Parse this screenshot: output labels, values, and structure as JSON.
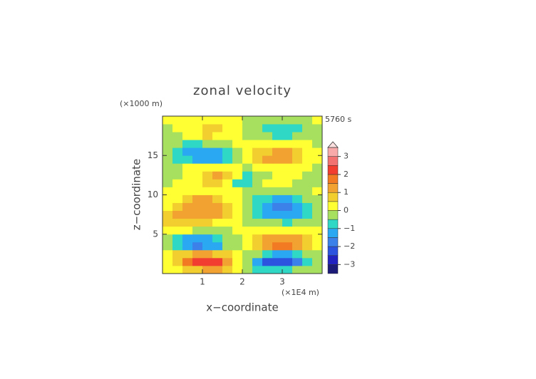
{
  "chart_data": {
    "type": "contour",
    "title": "zonal velocity",
    "subtitle": "5760 s",
    "x_label": "x−coordinate",
    "y_label": "z−coordinate",
    "x_unit": "(×1E4 m)",
    "y_unit": "(×1000 m)",
    "xlim": [
      0,
      4
    ],
    "ylim": [
      0,
      20
    ],
    "xticks": [
      1,
      2,
      3
    ],
    "yticks": [
      5,
      10,
      15
    ],
    "x": [
      0.125,
      0.375,
      0.625,
      0.875,
      1.125,
      1.375,
      1.625,
      1.875,
      2.125,
      2.375,
      2.625,
      2.875,
      3.125,
      3.375,
      3.625,
      3.875
    ],
    "y": [
      0.5,
      1.5,
      2.5,
      3.5,
      4.5,
      5.5,
      6.5,
      7.5,
      8.5,
      9.5,
      10.5,
      11.5,
      12.5,
      13.5,
      14.5,
      15.5,
      16.5,
      17.5,
      18.5,
      19.5
    ],
    "values": [
      [
        0.2,
        0.3,
        0.5,
        0.8,
        1.0,
        1.0,
        0.6,
        0.2,
        -0.2,
        -0.6,
        -1.0,
        -1.0,
        -0.8,
        -0.5,
        -0.3,
        -0.2
      ],
      [
        0.3,
        0.8,
        1.5,
        2.1,
        2.3,
        2.0,
        1.3,
        0.4,
        -0.5,
        -1.4,
        -2.1,
        -2.4,
        -2.2,
        -1.6,
        -0.8,
        -0.3
      ],
      [
        0.2,
        0.5,
        0.9,
        1.1,
        1.1,
        0.9,
        0.5,
        0.1,
        -0.1,
        -0.5,
        -0.9,
        -1.2,
        -1.1,
        -0.8,
        -0.4,
        -0.1
      ],
      [
        -0.3,
        -0.9,
        -1.4,
        -1.6,
        -1.5,
        -1.1,
        -0.5,
        -0.1,
        0.1,
        0.6,
        1.2,
        1.6,
        1.7,
        1.3,
        0.7,
        0.2
      ],
      [
        -0.2,
        -0.7,
        -1.1,
        -1.3,
        -1.2,
        -0.9,
        -0.4,
        -0.1,
        0.1,
        0.5,
        1.0,
        1.3,
        1.3,
        1.0,
        0.5,
        0.1
      ],
      [
        0.1,
        0.1,
        0.0,
        -0.2,
        -0.3,
        -0.3,
        -0.2,
        0.0,
        0.0,
        0.2,
        0.3,
        0.4,
        0.3,
        0.2,
        0.1,
        0.1
      ],
      [
        0.5,
        0.7,
        0.8,
        0.7,
        0.5,
        0.3,
        0.1,
        0.0,
        -0.1,
        -0.2,
        -0.4,
        -0.5,
        -0.6,
        -0.5,
        -0.4,
        -0.2
      ],
      [
        0.6,
        1.0,
        1.3,
        1.4,
        1.3,
        1.0,
        0.6,
        0.2,
        -0.3,
        -0.7,
        -1.1,
        -1.4,
        -1.5,
        -1.3,
        -0.9,
        -0.5
      ],
      [
        0.3,
        0.8,
        1.2,
        1.4,
        1.4,
        1.2,
        0.7,
        0.2,
        -0.3,
        -0.9,
        -1.4,
        -1.7,
        -1.6,
        -1.2,
        -0.7,
        -0.3
      ],
      [
        0.1,
        0.3,
        0.7,
        1.0,
        1.0,
        0.8,
        0.4,
        0.1,
        -0.2,
        -0.7,
        -1.0,
        -1.2,
        -1.1,
        -0.8,
        -0.4,
        -0.1
      ],
      [
        0.0,
        0.1,
        0.2,
        0.4,
        0.4,
        0.3,
        0.1,
        0.0,
        -0.1,
        -0.3,
        -0.5,
        -0.5,
        -0.4,
        -0.2,
        -0.1,
        0.0
      ],
      [
        -0.1,
        0.0,
        0.1,
        0.3,
        0.6,
        0.9,
        0.4,
        -0.8,
        -0.6,
        -0.2,
        0.0,
        0.1,
        0.0,
        -0.1,
        -0.2,
        -0.1
      ],
      [
        -0.2,
        -0.1,
        0.0,
        0.3,
        0.8,
        1.1,
        0.6,
        0.0,
        -1.0,
        -0.5,
        -0.1,
        0.1,
        0.1,
        0.0,
        -0.1,
        -0.2
      ],
      [
        -0.2,
        -0.1,
        0.0,
        0.1,
        0.2,
        0.3,
        0.1,
        0.0,
        -0.1,
        0.0,
        0.2,
        0.3,
        0.3,
        0.2,
        0.0,
        -0.1
      ],
      [
        -0.3,
        -0.6,
        -1.0,
        -1.3,
        -1.4,
        -1.1,
        -0.6,
        -0.2,
        0.2,
        0.7,
        1.0,
        1.2,
        1.1,
        0.8,
        0.4,
        0.1
      ],
      [
        -0.4,
        -0.7,
        -1.1,
        -1.4,
        -1.5,
        -1.2,
        -0.7,
        -0.2,
        0.2,
        0.6,
        0.9,
        1.1,
        1.0,
        0.7,
        0.3,
        0.1
      ],
      [
        -0.3,
        -0.5,
        -0.6,
        -0.6,
        -0.5,
        -0.4,
        -0.2,
        0.0,
        0.1,
        0.2,
        0.3,
        0.3,
        0.2,
        0.1,
        0.0,
        -0.1
      ],
      [
        -0.2,
        -0.1,
        0.1,
        0.3,
        0.5,
        0.4,
        0.2,
        0.0,
        -0.1,
        -0.3,
        -0.5,
        -0.7,
        -0.6,
        -0.4,
        -0.2,
        -0.1
      ],
      [
        -0.1,
        0.0,
        0.2,
        0.4,
        0.6,
        0.5,
        0.2,
        0.0,
        -0.2,
        -0.5,
        -0.8,
        -1.0,
        -0.9,
        -0.6,
        -0.3,
        -0.1
      ],
      [
        0.0,
        0.1,
        0.1,
        0.2,
        0.3,
        0.2,
        0.1,
        0.0,
        -0.1,
        -0.2,
        -0.3,
        -0.4,
        -0.3,
        -0.2,
        -0.1,
        0.0
      ]
    ],
    "colorbar": {
      "levels": [
        -3.5,
        -3,
        -2.5,
        -2,
        -1.5,
        -1,
        -0.5,
        0,
        0.5,
        1,
        1.5,
        2,
        2.5,
        3,
        3.5
      ],
      "colors": [
        "#1c1c78",
        "#2222c0",
        "#2c52e0",
        "#3c80ea",
        "#2aa8f2",
        "#2fd8c4",
        "#a6e05e",
        "#ffff33",
        "#f2cf2e",
        "#f2a231",
        "#f27a22",
        "#f23e30",
        "#f27272",
        "#f8aaaa"
      ],
      "extend_color": "#fce0e0",
      "ticks": [
        {
          "value": 3,
          "label": "3"
        },
        {
          "value": 2,
          "label": "2"
        },
        {
          "value": 1,
          "label": "1"
        },
        {
          "value": 0,
          "label": "0"
        },
        {
          "value": -1,
          "label": "−1"
        },
        {
          "value": -2,
          "label": "−2"
        },
        {
          "value": -3,
          "label": "−3"
        }
      ]
    }
  }
}
